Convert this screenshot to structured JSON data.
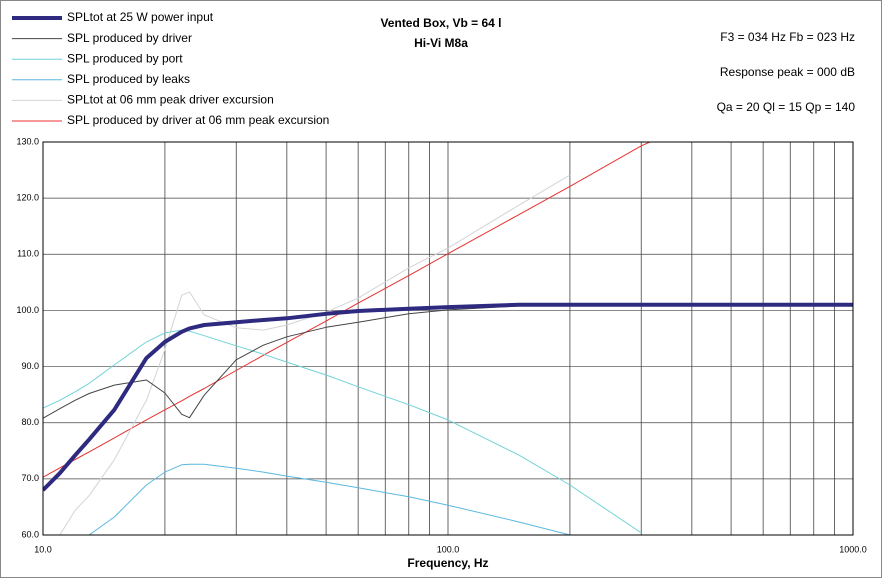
{
  "chart_data": {
    "type": "line",
    "title": "Vented Box, Vb = 64 l",
    "subtitle": "Hi-Vi M8a",
    "annotations": [
      "F3 = 034 Hz  Fb = 023 Hz",
      "Response peak = 000 dB",
      "Qa = 20  Ql = 15  Qp = 140"
    ],
    "x_label": "Frequency, Hz",
    "log_x": true,
    "grid": true,
    "legend": "top-left",
    "x": [
      10,
      11,
      12,
      13,
      15,
      18,
      20,
      22,
      23,
      25,
      30,
      35,
      40,
      50,
      60,
      80,
      100,
      150,
      200,
      300,
      315,
      500,
      1000
    ],
    "series": [
      {
        "name": "SPLtot at 25 W power input",
        "color": "#2e2a80",
        "width": 4,
        "values": [
          68,
          71,
          74.2,
          77,
          82.3,
          91.5,
          94.4,
          96.2,
          96.8,
          97.4,
          97.9,
          98.3,
          98.6,
          99.4,
          99.9,
          100.3,
          100.6,
          101,
          101,
          101,
          101,
          101,
          101
        ]
      },
      {
        "name": "SPL produced by driver",
        "color": "#444444",
        "width": 1,
        "values": [
          80.8,
          82.5,
          84,
          85.2,
          86.7,
          87.6,
          85.3,
          81.5,
          80.9,
          84.9,
          91.2,
          93.8,
          95.3,
          97,
          97.9,
          99.4,
          100.1,
          100.8,
          101,
          101,
          101,
          101,
          101
        ]
      },
      {
        "name": "SPL produced by port",
        "color": "#6fd3d8",
        "width": 1,
        "values": [
          82.6,
          84,
          85.5,
          87,
          90.3,
          94.4,
          96,
          96.5,
          96.3,
          95.5,
          93.7,
          92.2,
          90.8,
          88.5,
          86.4,
          83.2,
          80.5,
          74.2,
          68.9,
          60.4,
          null,
          null,
          null
        ]
      },
      {
        "name": "SPL produced by leaks",
        "color": "#5bb8e0",
        "width": 1,
        "values": [
          null,
          null,
          null,
          60,
          63.2,
          68.9,
          71.2,
          72.5,
          72.6,
          72.6,
          71.9,
          71.2,
          70.5,
          69.4,
          68.4,
          66.8,
          65.3,
          62.3,
          60,
          null,
          null,
          null,
          null
        ]
      },
      {
        "name": "SPLtot at 06 mm peak driver excursion",
        "color": "#d4d4d4",
        "width": 1,
        "values": [
          null,
          60,
          64.4,
          67,
          73.4,
          84,
          93,
          102.7,
          103.3,
          99.2,
          96.9,
          96.5,
          97.4,
          99.7,
          102.2,
          107.6,
          111.1,
          118.8,
          124.1,
          null,
          null,
          null,
          null
        ]
      },
      {
        "name": "SPL produced by driver at 06 mm peak excursion",
        "color": "#e83030",
        "width": 1,
        "values": [
          70.3,
          71.95,
          73.45,
          74.8,
          77.3,
          80.5,
          82.3,
          83.9,
          84.7,
          86.1,
          89.3,
          92,
          94.3,
          98.1,
          101.3,
          106.2,
          110.1,
          117.1,
          122.1,
          129.3,
          130,
          null,
          null
        ]
      }
    ],
    "xlim": [
      10,
      1000
    ],
    "xticks": [
      {
        "value": 10,
        "label": "10.0"
      },
      {
        "value": 100,
        "label": "100.0"
      },
      {
        "value": 1000,
        "label": "1000.0"
      }
    ],
    "xminor": [
      20,
      30,
      40,
      50,
      60,
      70,
      80,
      90,
      200,
      300,
      400,
      500,
      600,
      700,
      800,
      900
    ],
    "ylim": [
      60,
      130
    ],
    "yticks": [
      {
        "value": 60,
        "label": "60.0"
      },
      {
        "value": 70,
        "label": "70.0"
      },
      {
        "value": 80,
        "label": "80.0"
      },
      {
        "value": 90,
        "label": "90.0"
      },
      {
        "value": 100,
        "label": "100.0"
      },
      {
        "value": 110,
        "label": "110.0"
      },
      {
        "value": 120,
        "label": "120.0"
      },
      {
        "value": 130,
        "label": "130.0"
      }
    ]
  }
}
